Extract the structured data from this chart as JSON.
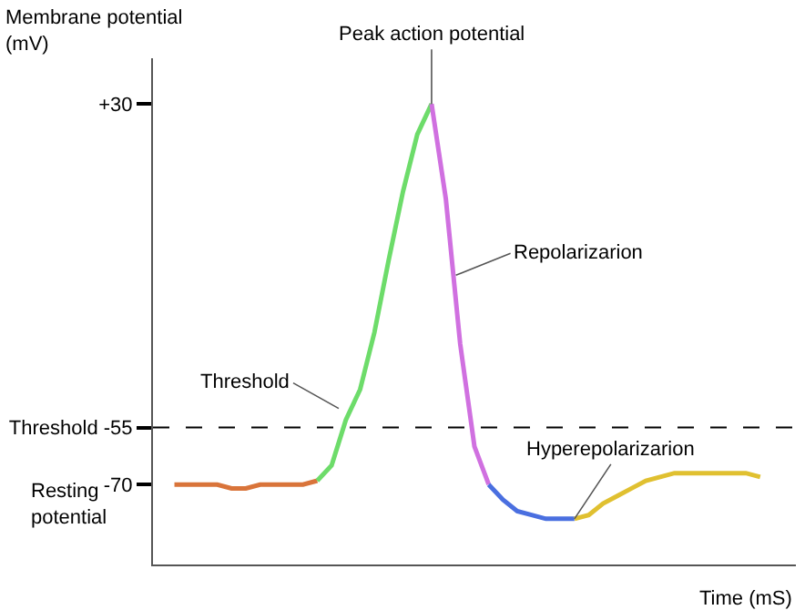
{
  "chart_data": {
    "type": "line",
    "xlabel": "Time (mS)",
    "ylabel": "Membrane potential (mV)",
    "categories": [
      null,
      null,
      null,
      null,
      null,
      null,
      null,
      null,
      null,
      null,
      null,
      null,
      null,
      null,
      null,
      null,
      null,
      null,
      null,
      null,
      null,
      null,
      null,
      null,
      null,
      null,
      null,
      null,
      null,
      null,
      null,
      null,
      null,
      null,
      null,
      null,
      null,
      null,
      null,
      null,
      null,
      null,
      null,
      null,
      null
    ],
    "series": [
      {
        "color": "#d9743a",
        "values": [
          null,
          -70,
          -70,
          -70,
          -70,
          -71,
          -71,
          -70,
          -70,
          -70,
          -70,
          -69,
          null,
          null,
          null,
          null,
          null,
          null,
          null,
          null,
          null,
          null,
          null,
          null,
          null,
          null,
          null,
          null,
          null,
          null,
          null,
          null,
          null,
          null,
          null,
          null,
          null,
          null,
          null,
          null,
          null,
          null,
          null,
          null,
          null
        ]
      },
      {
        "color": "#6ddc6a",
        "values": [
          null,
          null,
          null,
          null,
          null,
          null,
          null,
          null,
          null,
          null,
          null,
          -69,
          -65,
          -53,
          -45,
          -30,
          -11,
          7,
          22,
          30,
          null,
          null,
          null,
          null,
          null,
          null,
          null,
          null,
          null,
          null,
          null,
          null,
          null,
          null,
          null,
          null,
          null,
          null,
          null,
          null,
          null,
          null,
          null,
          null,
          null
        ]
      },
      {
        "color": "#d070e0",
        "values": [
          null,
          null,
          null,
          null,
          null,
          null,
          null,
          null,
          null,
          null,
          null,
          null,
          null,
          null,
          null,
          null,
          null,
          null,
          null,
          30,
          5,
          -33,
          -60,
          -70,
          null,
          null,
          null,
          null,
          null,
          null,
          null,
          null,
          null,
          null,
          null,
          null,
          null,
          null,
          null,
          null,
          null,
          null,
          null,
          null,
          null
        ]
      },
      {
        "color": "#4a6fe0",
        "values": [
          null,
          null,
          null,
          null,
          null,
          null,
          null,
          null,
          null,
          null,
          null,
          null,
          null,
          null,
          null,
          null,
          null,
          null,
          null,
          null,
          null,
          null,
          null,
          -70,
          -74,
          -77,
          -78,
          -79,
          -79,
          -79,
          null,
          null,
          null,
          null,
          null,
          null,
          null,
          null,
          null,
          null,
          null,
          null,
          null,
          null,
          null
        ]
      },
      {
        "color": "#e0c030",
        "values": [
          null,
          null,
          null,
          null,
          null,
          null,
          null,
          null,
          null,
          null,
          null,
          null,
          null,
          null,
          null,
          null,
          null,
          null,
          null,
          null,
          null,
          null,
          null,
          null,
          null,
          null,
          null,
          null,
          null,
          -79,
          -78,
          -75,
          -73,
          -71,
          -69,
          -68,
          -67,
          -67,
          -67,
          -67,
          -67,
          -67,
          -68,
          null,
          null
        ]
      }
    ],
    "ylim": [
      -91,
      42
    ],
    "yticks": [
      {
        "value": 30,
        "label": "+30"
      },
      {
        "value": -55,
        "label": "Threshold -55"
      },
      {
        "value": -70,
        "label": "-70"
      }
    ],
    "ref_lines": [
      {
        "axis": "y",
        "value": -55,
        "line_style": "dashed",
        "color": "#000000"
      }
    ],
    "annotations": [
      "Peak action potential",
      "Threshold",
      "Repolarizarion",
      "Hyperepolarizarion",
      "Resting potential"
    ],
    "tick_labels": "y",
    "marker": "none",
    "line_style": "solid"
  }
}
